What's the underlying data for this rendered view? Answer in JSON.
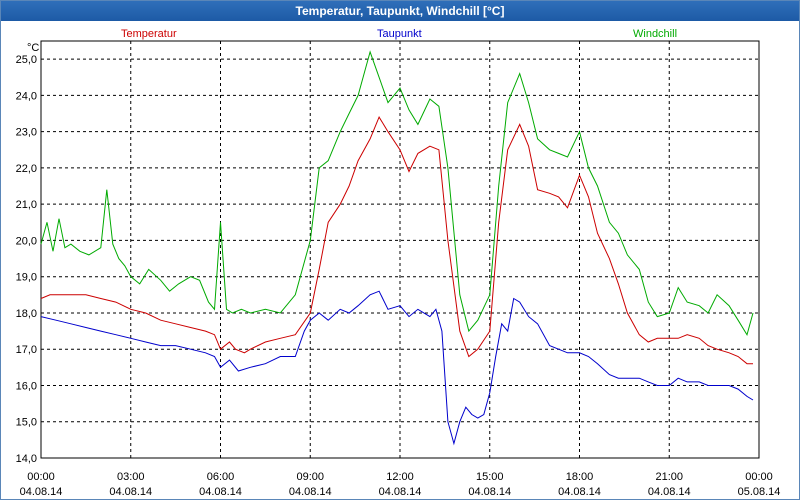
{
  "window": {
    "title": "Temperatur, Taupunkt, Windchill [°C]"
  },
  "chart_data": {
    "type": "line",
    "title": "Temperatur, Taupunkt, Windchill [°C]",
    "ylabel": "°C",
    "xlabel": "",
    "ylim": [
      14.0,
      25.5
    ],
    "xlim": [
      0,
      24
    ],
    "grid": true,
    "legend_position": "top",
    "y_ticks": [
      "14,0",
      "15,0",
      "16,0",
      "17,0",
      "18,0",
      "19,0",
      "20,0",
      "21,0",
      "22,0",
      "23,0",
      "24,0",
      "25,0"
    ],
    "y_tick_values": [
      14,
      15,
      16,
      17,
      18,
      19,
      20,
      21,
      22,
      23,
      24,
      25
    ],
    "x_ticks": [
      {
        "value": 0,
        "time": "00:00",
        "date": "04.08.14"
      },
      {
        "value": 3,
        "time": "03:00",
        "date": "04.08.14"
      },
      {
        "value": 6,
        "time": "06:00",
        "date": "04.08.14"
      },
      {
        "value": 9,
        "time": "09:00",
        "date": "04.08.14"
      },
      {
        "value": 12,
        "time": "12:00",
        "date": "04.08.14"
      },
      {
        "value": 15,
        "time": "15:00",
        "date": "04.08.14"
      },
      {
        "value": 18,
        "time": "18:00",
        "date": "04.08.14"
      },
      {
        "value": 21,
        "time": "21:00",
        "date": "04.08.14"
      },
      {
        "value": 24,
        "time": "00:00",
        "date": "05.08.14"
      }
    ],
    "series": [
      {
        "name": "Temperatur",
        "color": "#cc0000",
        "x": [
          0,
          0.3,
          0.6,
          1,
          1.5,
          2,
          2.5,
          3,
          3.5,
          4,
          4.5,
          5,
          5.5,
          5.8,
          6,
          6.3,
          6.5,
          6.8,
          7,
          7.5,
          8,
          8.5,
          9,
          9.3,
          9.6,
          10,
          10.3,
          10.6,
          11,
          11.3,
          11.6,
          12,
          12.3,
          12.6,
          13,
          13.3,
          13.6,
          14,
          14.3,
          14.6,
          15,
          15.3,
          15.6,
          16,
          16.3,
          16.6,
          17,
          17.3,
          17.6,
          18,
          18.3,
          18.6,
          19,
          19.3,
          19.6,
          20,
          20.3,
          20.6,
          21,
          21.3,
          21.6,
          22,
          22.3,
          22.6,
          23,
          23.3,
          23.6,
          23.8
        ],
        "y": [
          18.4,
          18.5,
          18.5,
          18.5,
          18.5,
          18.4,
          18.3,
          18.1,
          18.0,
          17.8,
          17.7,
          17.6,
          17.5,
          17.4,
          17.0,
          17.2,
          17.0,
          16.9,
          17.0,
          17.2,
          17.3,
          17.4,
          18.0,
          19.2,
          20.5,
          21.0,
          21.5,
          22.2,
          22.8,
          23.4,
          23.0,
          22.5,
          21.9,
          22.4,
          22.6,
          22.5,
          20.0,
          17.5,
          16.8,
          17.0,
          17.5,
          20.5,
          22.5,
          23.2,
          22.6,
          21.4,
          21.3,
          21.2,
          20.9,
          21.8,
          21.2,
          20.2,
          19.5,
          18.8,
          18.0,
          17.4,
          17.2,
          17.3,
          17.3,
          17.3,
          17.4,
          17.3,
          17.1,
          17.0,
          16.9,
          16.8,
          16.6,
          16.6
        ]
      },
      {
        "name": "Taupunkt",
        "color": "#0000cc",
        "x": [
          0,
          0.5,
          1,
          1.5,
          2,
          2.5,
          3,
          3.5,
          4,
          4.5,
          5,
          5.5,
          5.8,
          6,
          6.3,
          6.6,
          7,
          7.5,
          8,
          8.5,
          8.8,
          9,
          9.3,
          9.6,
          10,
          10.3,
          10.6,
          11,
          11.3,
          11.6,
          12,
          12.3,
          12.6,
          13,
          13.2,
          13.4,
          13.6,
          13.8,
          14,
          14.2,
          14.4,
          14.6,
          14.8,
          15,
          15.2,
          15.4,
          15.6,
          15.8,
          16,
          16.3,
          16.6,
          17,
          17.3,
          17.6,
          18,
          18.3,
          18.6,
          19,
          19.3,
          19.6,
          20,
          20.3,
          20.6,
          21,
          21.3,
          21.6,
          22,
          22.3,
          22.6,
          23,
          23.3,
          23.6,
          23.8
        ],
        "y": [
          17.9,
          17.8,
          17.7,
          17.6,
          17.5,
          17.4,
          17.3,
          17.2,
          17.1,
          17.1,
          17.0,
          16.9,
          16.8,
          16.5,
          16.7,
          16.4,
          16.5,
          16.6,
          16.8,
          16.8,
          17.5,
          17.8,
          18.0,
          17.8,
          18.1,
          18.0,
          18.2,
          18.5,
          18.6,
          18.1,
          18.2,
          17.9,
          18.1,
          17.9,
          18.1,
          17.5,
          15.0,
          14.4,
          15.0,
          15.4,
          15.2,
          15.1,
          15.2,
          15.8,
          16.8,
          17.7,
          17.5,
          18.4,
          18.3,
          17.9,
          17.7,
          17.1,
          17.0,
          16.9,
          16.9,
          16.8,
          16.6,
          16.3,
          16.2,
          16.2,
          16.2,
          16.1,
          16.0,
          16.0,
          16.2,
          16.1,
          16.1,
          16.0,
          16.0,
          16.0,
          15.9,
          15.7,
          15.6
        ]
      },
      {
        "name": "Windchill",
        "color": "#00aa00",
        "x": [
          0,
          0.2,
          0.4,
          0.6,
          0.8,
          1,
          1.3,
          1.6,
          2,
          2.2,
          2.4,
          2.6,
          2.8,
          3,
          3.3,
          3.6,
          4,
          4.3,
          4.6,
          5,
          5.3,
          5.6,
          5.8,
          6,
          6.2,
          6.4,
          6.7,
          7,
          7.5,
          8,
          8.5,
          9,
          9.3,
          9.6,
          10,
          10.3,
          10.6,
          11,
          11.3,
          11.6,
          12,
          12.3,
          12.6,
          13,
          13.3,
          13.6,
          14,
          14.3,
          14.6,
          15,
          15.3,
          15.6,
          16,
          16.3,
          16.6,
          17,
          17.3,
          17.6,
          18,
          18.3,
          18.6,
          19,
          19.3,
          19.6,
          20,
          20.3,
          20.6,
          21,
          21.3,
          21.6,
          22,
          22.3,
          22.6,
          23,
          23.3,
          23.6,
          23.8
        ],
        "y": [
          19.9,
          20.5,
          19.7,
          20.6,
          19.8,
          19.9,
          19.7,
          19.6,
          19.8,
          21.4,
          19.9,
          19.5,
          19.3,
          19.0,
          18.8,
          19.2,
          18.9,
          18.6,
          18.8,
          19.0,
          18.9,
          18.3,
          18.1,
          20.5,
          18.1,
          18.0,
          18.1,
          18.0,
          18.1,
          18.0,
          18.5,
          20.0,
          22.0,
          22.2,
          23.0,
          23.5,
          24.0,
          25.2,
          24.5,
          23.8,
          24.2,
          23.6,
          23.2,
          23.9,
          23.7,
          22.0,
          18.5,
          17.5,
          17.8,
          18.5,
          21.5,
          23.8,
          24.6,
          23.8,
          22.8,
          22.5,
          22.4,
          22.3,
          23.0,
          22.0,
          21.5,
          20.5,
          20.2,
          19.6,
          19.2,
          18.3,
          17.9,
          18.0,
          18.7,
          18.3,
          18.2,
          18.0,
          18.5,
          18.2,
          17.8,
          17.4,
          18.0
        ]
      }
    ]
  }
}
